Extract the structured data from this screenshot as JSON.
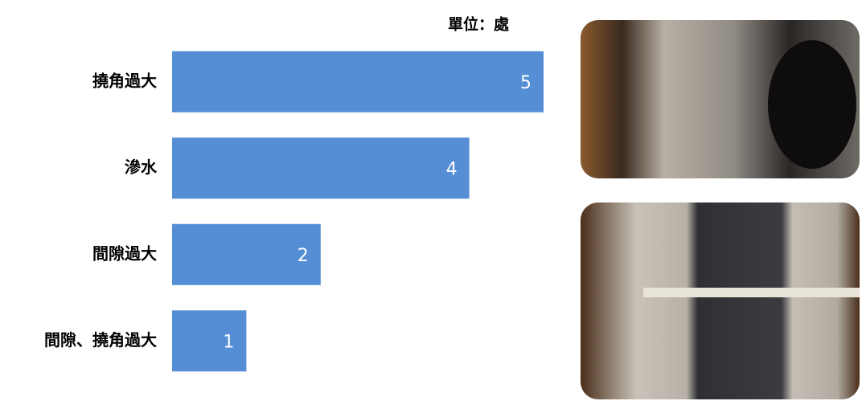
{
  "chart_data": {
    "type": "hbar",
    "unit_label": "單位：處",
    "categories": [
      "撓角過大",
      "滲水",
      "間隙過大",
      "間隙、撓角過大"
    ],
    "values": [
      5,
      4,
      2,
      1
    ],
    "color": "#558ed5",
    "xlim": [
      0,
      5
    ]
  }
}
